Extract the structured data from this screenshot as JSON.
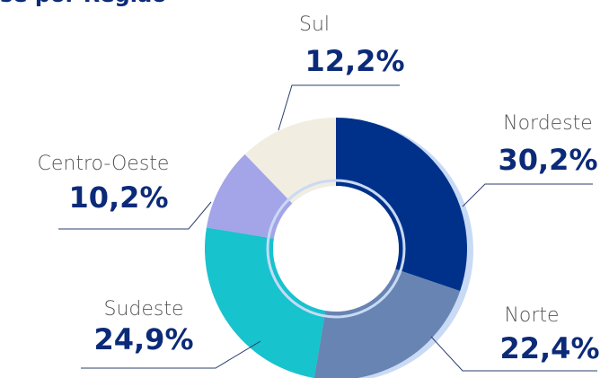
{
  "chart_data": {
    "type": "donut",
    "title": "se por Região",
    "categories": [
      "Nordeste",
      "Norte",
      "Sudeste",
      "Centro-Oeste",
      "Sul"
    ],
    "values": [
      30.2,
      22.4,
      24.9,
      10.2,
      12.2
    ],
    "value_labels": [
      "30,2%",
      "22,4%",
      "24,9%",
      "10,2%",
      "12,2%"
    ],
    "colors": [
      "#00318a",
      "#6884b2",
      "#17c3cd",
      "#a4a4e8",
      "#f1ede1"
    ]
  }
}
